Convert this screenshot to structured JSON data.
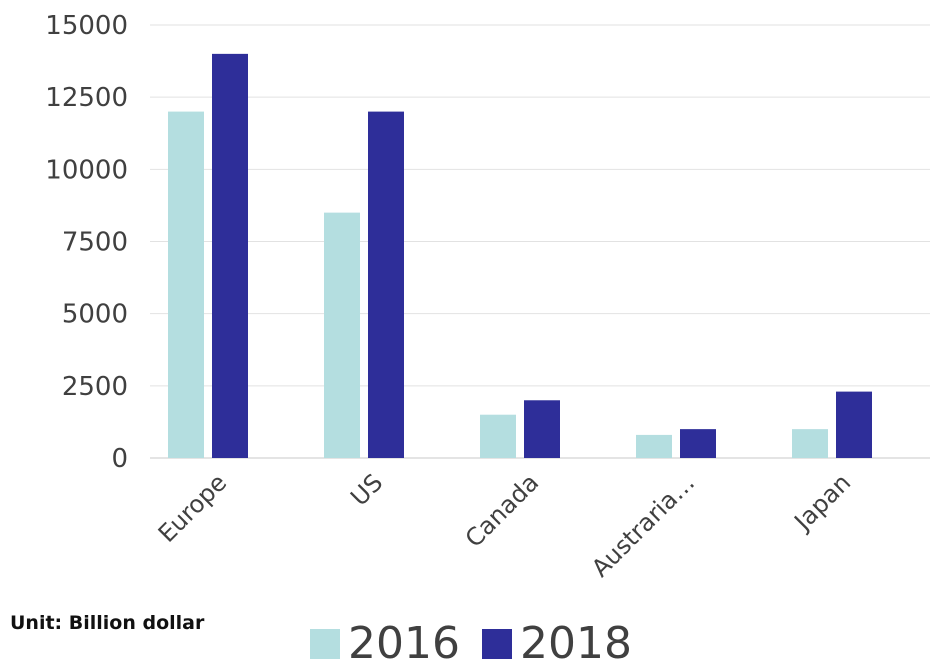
{
  "chart_data": {
    "type": "bar",
    "categories": [
      "Europe",
      "US",
      "Canada",
      "Austraria…",
      "Japan"
    ],
    "series": [
      {
        "name": "2016",
        "values": [
          12000,
          8500,
          1500,
          800,
          1000
        ],
        "color": "#B4DEE0"
      },
      {
        "name": "2018",
        "values": [
          14000,
          12000,
          2000,
          1000,
          2300
        ],
        "color": "#2E2E99"
      }
    ],
    "yticks": [
      "0",
      "2500",
      "5000",
      "7500",
      "10000",
      "12500",
      "15000"
    ],
    "ylim": [
      0,
      15000
    ],
    "grid": true,
    "legend": "bottom-center",
    "annotation": "Unit: Billion dollar"
  }
}
